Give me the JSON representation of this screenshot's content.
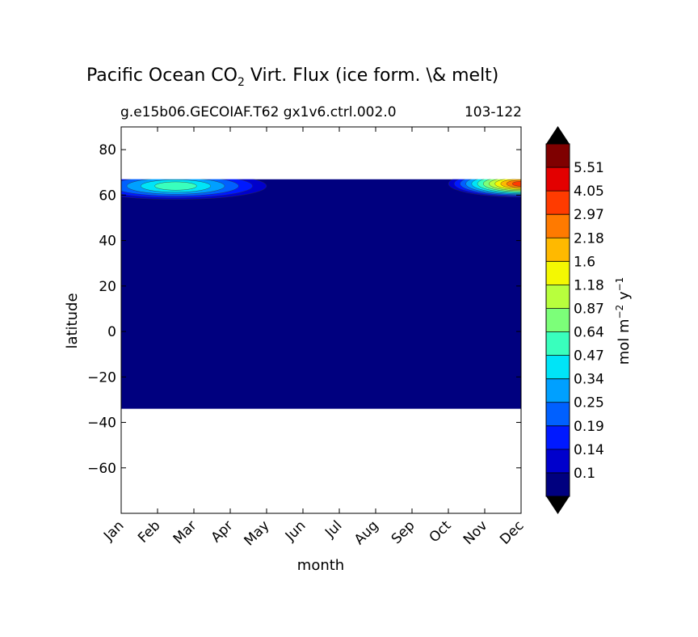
{
  "figure": {
    "title_main": "Pacific Ocean CO",
    "title_sub": "2",
    "title_rest": " Virt. Flux (ice form. \\& melt)",
    "run_label": "g.e15b06.GECOIAF.T62 gx1v6.ctrl.002.0",
    "year_range": "103-122"
  },
  "chart_data": {
    "type": "heatmap",
    "xlabel": "month",
    "ylabel": "latitude",
    "x_categories": [
      "Jan",
      "Feb",
      "Mar",
      "Apr",
      "May",
      "Jun",
      "Jul",
      "Aug",
      "Sep",
      "Oct",
      "Nov",
      "Dec"
    ],
    "ylim": [
      -80,
      90
    ],
    "yticks": [
      80,
      60,
      40,
      20,
      0,
      -20,
      -40,
      -60
    ],
    "ytick_labels": [
      "80",
      "60",
      "40",
      "20",
      "0",
      "−20",
      "−40",
      "−60"
    ],
    "data_lat_range": [
      -34,
      67
    ],
    "hotspots": [
      {
        "months_from": 0,
        "months_to": 4.0,
        "lat_from": 58,
        "lat_to": 67,
        "peak_month": 1.5,
        "peak_lat": 64,
        "peak_level": 6
      },
      {
        "months_from": 9.0,
        "months_to": 11,
        "lat_from": 58,
        "lat_to": 67,
        "peak_month": 11,
        "peak_lat": 65,
        "peak_level": 12
      }
    ],
    "colorbar": {
      "label_main": "mol m",
      "label_sup1": "−2",
      "label_mid": " y",
      "label_sup2": "−1",
      "levels": [
        "0.1",
        "0.14",
        "0.19",
        "0.25",
        "0.34",
        "0.47",
        "0.64",
        "0.87",
        "1.18",
        "1.6",
        "2.18",
        "2.97",
        "4.05",
        "5.51"
      ],
      "colors": [
        "#00007f",
        "#0000cc",
        "#0019ff",
        "#0060ff",
        "#00a0ff",
        "#00e4f7",
        "#39ffbd",
        "#7cff79",
        "#b8ff3d",
        "#f4f802",
        "#ffb900",
        "#ff7a00",
        "#ff3b00",
        "#e30000",
        "#7f0000"
      ],
      "under_color": "#000000",
      "over_color": "#000000"
    }
  }
}
